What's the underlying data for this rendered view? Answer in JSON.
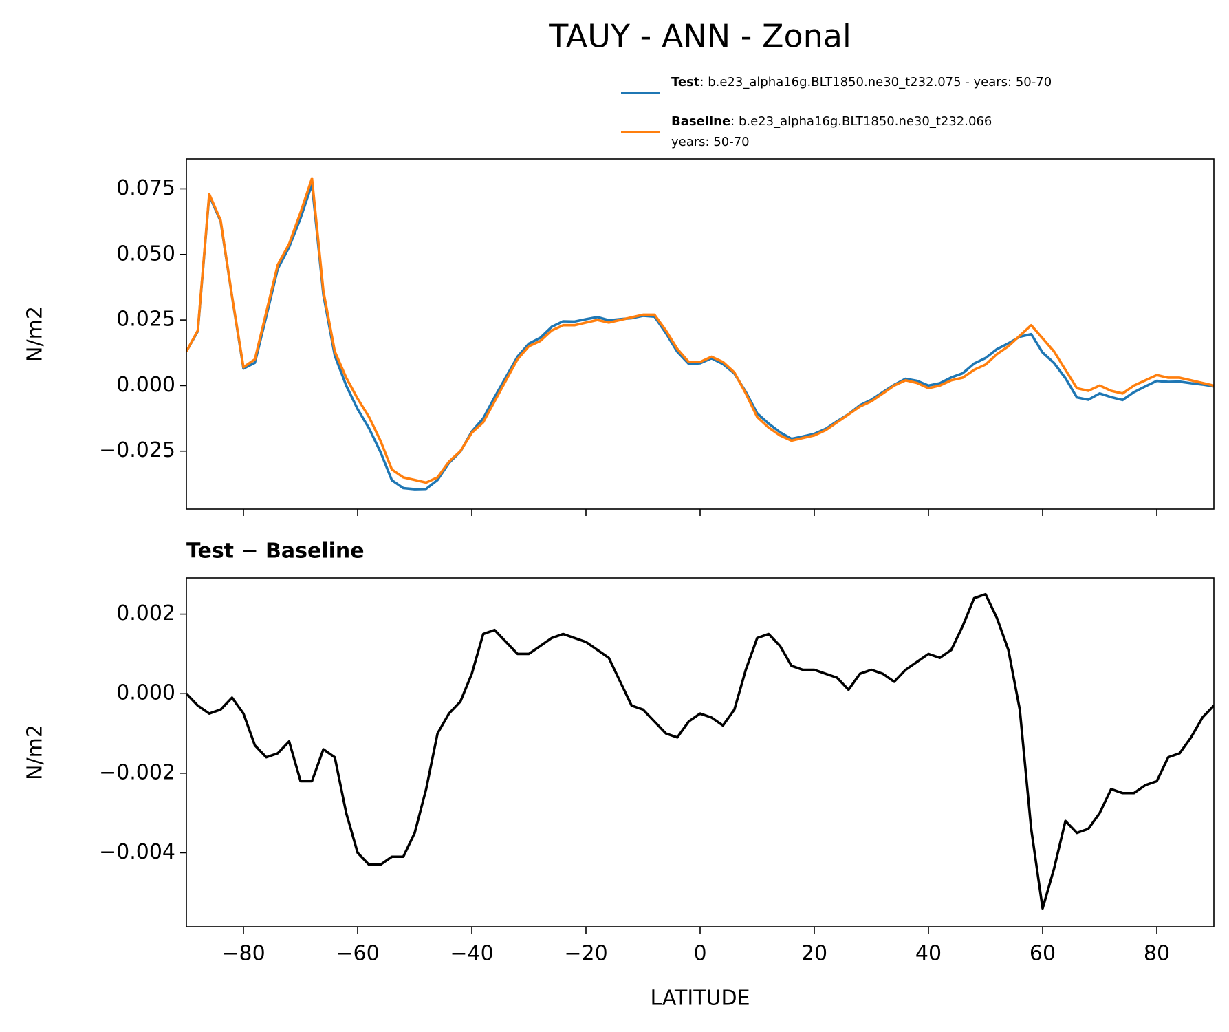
{
  "chart_data": [
    {
      "type": "line",
      "title": "TAUY - ANN - Zonal",
      "ylabel": "N/m2",
      "x": [
        -90,
        -88,
        -86,
        -84,
        -82,
        -80,
        -78,
        -76,
        -74,
        -72,
        -70,
        -68,
        -66,
        -64,
        -62,
        -60,
        -58,
        -56,
        -54,
        -52,
        -50,
        -48,
        -46,
        -44,
        -42,
        -40,
        -38,
        -36,
        -34,
        -32,
        -30,
        -28,
        -26,
        -24,
        -22,
        -20,
        -18,
        -16,
        -14,
        -12,
        -10,
        -8,
        -6,
        -4,
        -2,
        0,
        2,
        4,
        6,
        8,
        10,
        12,
        14,
        16,
        18,
        20,
        22,
        24,
        26,
        28,
        30,
        32,
        34,
        36,
        38,
        40,
        42,
        44,
        46,
        48,
        50,
        52,
        54,
        56,
        58,
        60,
        62,
        64,
        66,
        68,
        70,
        72,
        74,
        76,
        78,
        80,
        82,
        84,
        86,
        88,
        90
      ],
      "series": [
        {
          "name": "Test",
          "label": [
            ": b.e23_alpha16g.BLT1850.ne30_t232.075 - years: 50-70"
          ],
          "color": "#1f77b4",
          "values": [
            0.013,
            0.0207,
            0.0725,
            0.0626,
            0.0339,
            0.0065,
            0.0087,
            0.0264,
            0.0445,
            0.0528,
            0.0638,
            0.0768,
            0.0346,
            0.0114,
            0.0,
            -0.009,
            -0.0163,
            -0.0253,
            -0.0361,
            -0.0391,
            -0.0395,
            -0.0394,
            -0.036,
            -0.0295,
            -0.0252,
            -0.0175,
            -0.0125,
            -0.0044,
            0.0033,
            0.011,
            0.016,
            0.0182,
            0.0224,
            0.0245,
            0.0244,
            0.0253,
            0.0261,
            0.0249,
            0.0253,
            0.0257,
            0.0266,
            0.0263,
            0.02,
            0.0129,
            0.0083,
            0.0085,
            0.0104,
            0.0082,
            0.0046,
            -0.0024,
            -0.0106,
            -0.0145,
            -0.0178,
            -0.0203,
            -0.0194,
            -0.0184,
            -0.0165,
            -0.0136,
            -0.0109,
            -0.0075,
            -0.0054,
            -0.0025,
            0.0003,
            0.0026,
            0.0018,
            0.0,
            0.0009,
            0.0031,
            0.0047,
            0.0084,
            0.0105,
            0.0139,
            0.0161,
            0.0186,
            0.0196,
            0.0126,
            0.0086,
            0.0028,
            -0.0045,
            -0.0054,
            -0.003,
            -0.0044,
            -0.0055,
            -0.0025,
            -0.0003,
            0.0018,
            0.0014,
            0.0015,
            0.0009,
            0.0004,
            -0.0003
          ]
        },
        {
          "name": "Baseline",
          "label": [
            ": b.e23_alpha16g.BLT1850.ne30_t232.066",
            "years: 50-70"
          ],
          "color": "#ff7f0e",
          "values": [
            0.013,
            0.021,
            0.073,
            0.063,
            0.034,
            0.007,
            0.01,
            0.028,
            0.046,
            0.054,
            0.066,
            0.079,
            0.036,
            0.013,
            0.003,
            -0.005,
            -0.012,
            -0.021,
            -0.032,
            -0.035,
            -0.036,
            -0.037,
            -0.035,
            -0.029,
            -0.025,
            -0.018,
            -0.014,
            -0.006,
            0.002,
            0.01,
            0.015,
            0.017,
            0.021,
            0.023,
            0.023,
            0.024,
            0.025,
            0.024,
            0.025,
            0.026,
            0.027,
            0.027,
            0.021,
            0.014,
            0.009,
            0.009,
            0.011,
            0.009,
            0.005,
            -0.003,
            -0.012,
            -0.016,
            -0.019,
            -0.021,
            -0.02,
            -0.019,
            -0.017,
            -0.014,
            -0.011,
            -0.008,
            -0.006,
            -0.003,
            0.0,
            0.002,
            0.001,
            -0.001,
            0.0,
            0.002,
            0.003,
            0.006,
            0.008,
            0.012,
            0.015,
            0.019,
            0.023,
            0.018,
            0.013,
            0.006,
            -0.001,
            -0.002,
            0.0,
            -0.002,
            -0.003,
            0.0,
            0.002,
            0.004,
            0.003,
            0.003,
            0.002,
            0.001,
            0.0
          ]
        }
      ],
      "xlim": [
        -90,
        90
      ],
      "xticks": [
        -80,
        -60,
        -40,
        -20,
        0,
        20,
        40,
        60,
        80
      ],
      "ylim": [
        -0.0471,
        0.0864
      ],
      "yticks": [
        {
          "value": -0.025,
          "label": "−0.025"
        },
        {
          "value": 0,
          "label": "0.000"
        },
        0.025,
        {
          "value": 0.05,
          "label": "0.050"
        },
        0.075
      ]
    },
    {
      "type": "line",
      "title": "Test − Baseline",
      "ylabel": "N/m2",
      "xlabel": "LATITUDE",
      "x": [
        -90,
        -88,
        -86,
        -84,
        -82,
        -80,
        -78,
        -76,
        -74,
        -72,
        -70,
        -68,
        -66,
        -64,
        -62,
        -60,
        -58,
        -56,
        -54,
        -52,
        -50,
        -48,
        -46,
        -44,
        -42,
        -40,
        -38,
        -36,
        -34,
        -32,
        -30,
        -28,
        -26,
        -24,
        -22,
        -20,
        -18,
        -16,
        -14,
        -12,
        -10,
        -8,
        -6,
        -4,
        -2,
        0,
        2,
        4,
        6,
        8,
        10,
        12,
        14,
        16,
        18,
        20,
        22,
        24,
        26,
        28,
        30,
        32,
        34,
        36,
        38,
        40,
        42,
        44,
        46,
        48,
        50,
        52,
        54,
        56,
        58,
        60,
        62,
        64,
        66,
        68,
        70,
        72,
        74,
        76,
        78,
        80,
        82,
        84,
        86,
        88,
        90
      ],
      "series": [
        {
          "color": "#000000",
          "values": [
            0.0,
            -0.0003,
            -0.0005,
            -0.0004,
            -0.0001,
            -0.0005,
            -0.0013,
            -0.0016,
            -0.0015,
            -0.0012,
            -0.0022,
            -0.0022,
            -0.0014,
            -0.0016,
            -0.003,
            -0.004,
            -0.0043,
            -0.0043,
            -0.0041,
            -0.0041,
            -0.0035,
            -0.0024,
            -0.001,
            -0.0005,
            -0.0002,
            0.0005,
            0.0015,
            0.0016,
            0.0013,
            0.001,
            0.001,
            0.0012,
            0.0014,
            0.0015,
            0.0014,
            0.0013,
            0.0011,
            0.0009,
            0.0003,
            -0.0003,
            -0.0004,
            -0.0007,
            -0.001,
            -0.0011,
            -0.0007,
            -0.0005,
            -0.0006,
            -0.0008,
            -0.0004,
            0.0006,
            0.0014,
            0.0015,
            0.0012,
            0.0007,
            0.0006,
            0.0006,
            0.0005,
            0.0004,
            0.0001,
            0.0005,
            0.0006,
            0.0005,
            0.0003,
            0.0006,
            0.0008,
            0.001,
            0.0009,
            0.0011,
            0.0017,
            0.0024,
            0.0025,
            0.0019,
            0.0011,
            -0.0004,
            -0.0034,
            -0.0054,
            -0.0044,
            -0.0032,
            -0.0035,
            -0.0034,
            -0.003,
            -0.0024,
            -0.0025,
            -0.0025,
            -0.0023,
            -0.0022,
            -0.0016,
            -0.0015,
            -0.0011,
            -0.0006,
            -0.0003
          ]
        }
      ],
      "xlim": [
        -90,
        90
      ],
      "xticks": [
        {
          "value": -80,
          "label": "−80"
        },
        {
          "value": -60,
          "label": "−60"
        },
        {
          "value": -40,
          "label": "−40"
        },
        {
          "value": -20,
          "label": "−20"
        },
        0,
        20,
        40,
        60,
        80
      ],
      "ylim": [
        -0.00586,
        0.00291
      ],
      "yticks": [
        {
          "value": -0.004,
          "label": "−0.004"
        },
        {
          "value": -0.002,
          "label": "−0.002"
        },
        {
          "value": 0,
          "label": "0.000"
        },
        0.002
      ]
    }
  ]
}
